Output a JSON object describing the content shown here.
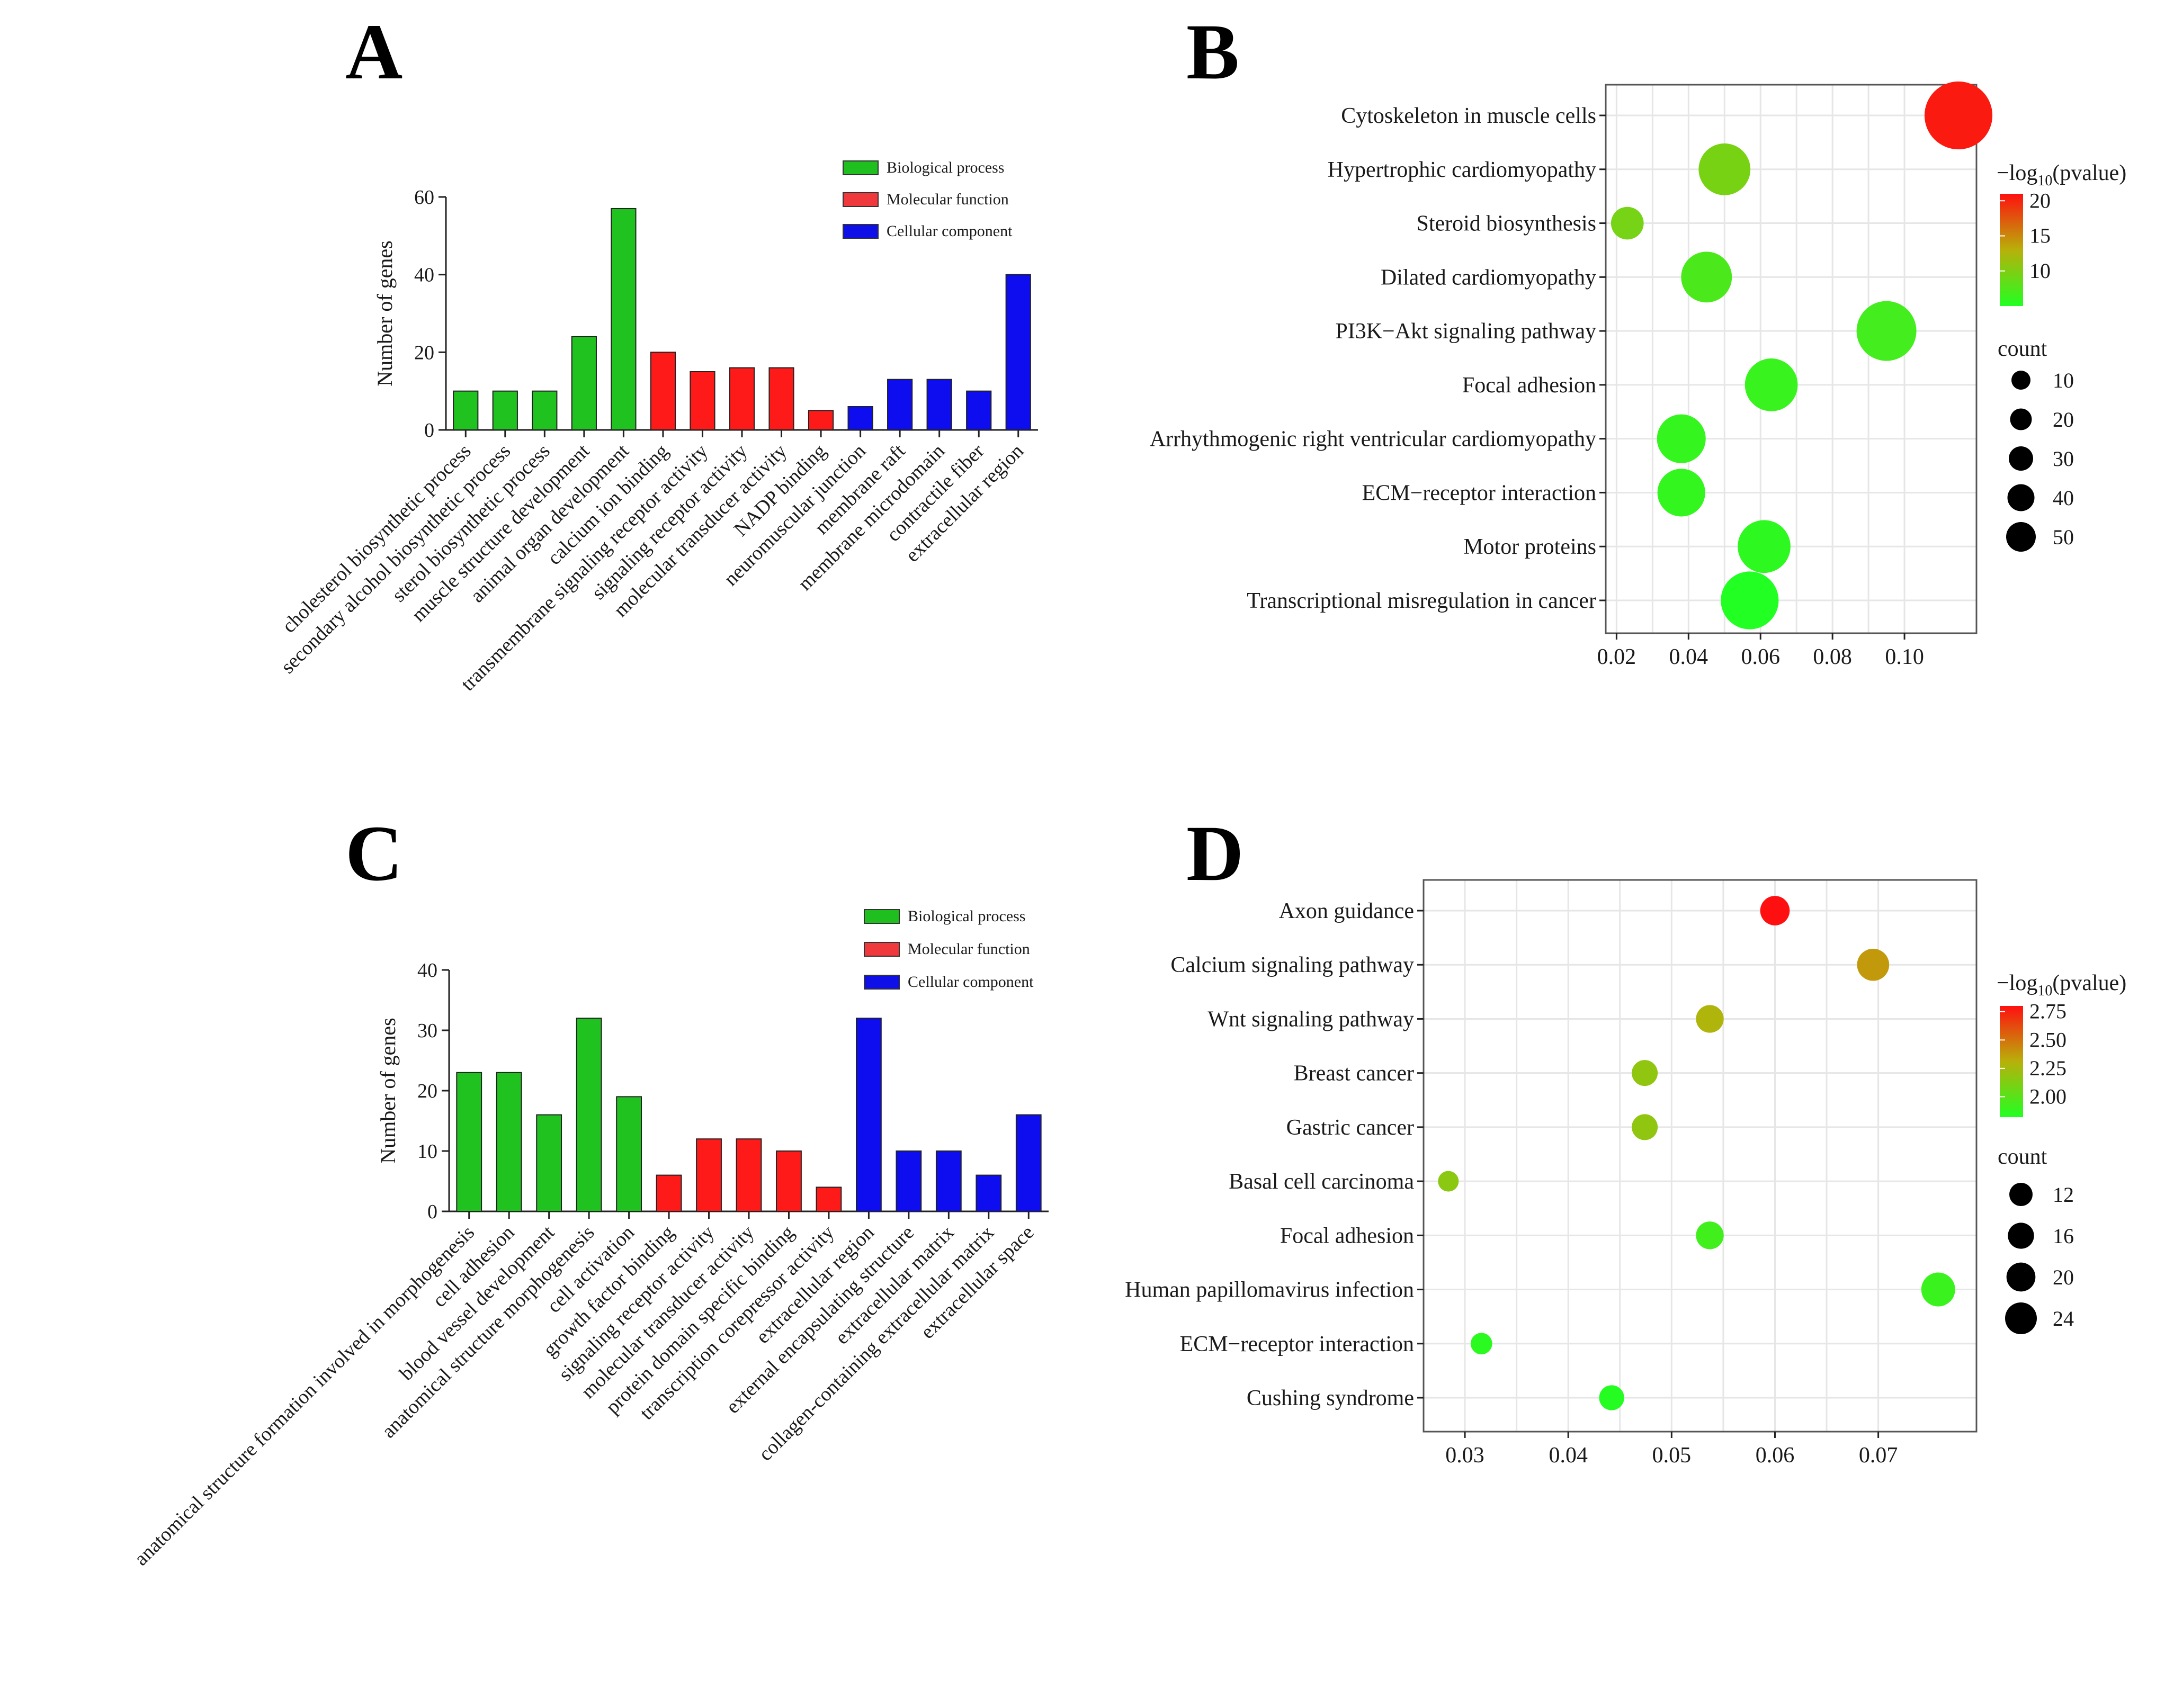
{
  "chart_data": [
    {
      "id": "A",
      "type": "bar",
      "panel_label": "A",
      "ylabel": "Number of genes",
      "ylim": [
        0,
        60
      ],
      "yticks": [
        0,
        20,
        40,
        60
      ],
      "legend": [
        {
          "name": "Biological process",
          "color": "#1fbf1f"
        },
        {
          "name": "Molecular function",
          "color": "#f0393c"
        },
        {
          "name": "Cellular component",
          "color": "#0f0fe8"
        }
      ],
      "legend_position": "top-right",
      "bar_colors": {
        "bp": "#1fc21f",
        "mf": "#ff1a1a",
        "cc": "#0d0df0"
      },
      "categories": [
        "cholesterol biosynthetic process",
        "secondary alcohol biosynthetic process",
        "sterol biosynthetic process",
        "muscle structure development",
        "animal organ development",
        "calcium ion binding",
        "transmembrane signaling receptor activity",
        "signaling receptor activity",
        "molecular transducer activity",
        "NADP binding",
        "neuromuscular junction",
        "membrane raft",
        "membrane microdomain",
        "contractile fiber",
        "extracellular region"
      ],
      "values": [
        10,
        10,
        10,
        24,
        57,
        20,
        15,
        16,
        16,
        5,
        6,
        13,
        13,
        10,
        40
      ],
      "groups": [
        "bp",
        "bp",
        "bp",
        "bp",
        "bp",
        "mf",
        "mf",
        "mf",
        "mf",
        "mf",
        "cc",
        "cc",
        "cc",
        "cc",
        "cc"
      ]
    },
    {
      "id": "B",
      "type": "scatter",
      "panel_label": "B",
      "terms": [
        "Cytoskeleton in muscle cells",
        "Hypertrophic cardiomyopathy",
        "Steroid biosynthesis",
        "Dilated cardiomyopathy",
        "PI3K−Akt signaling pathway",
        "Focal adhesion",
        "Arrhythmogenic right ventricular cardiomyopathy",
        "ECM−receptor interaction",
        "Motor proteins",
        "Transcriptional misregulation in cancer"
      ],
      "x": [
        0.115,
        0.05,
        0.023,
        0.045,
        0.095,
        0.063,
        0.038,
        0.038,
        0.061,
        0.057
      ],
      "count": [
        48,
        32,
        13,
        31,
        40,
        33,
        29,
        28,
        33,
        38
      ],
      "neglog10p": [
        20.5,
        9.6,
        9.5,
        7.2,
        6.8,
        6.2,
        6.0,
        5.9,
        5.6,
        4.9
      ],
      "xlim": [
        0.017,
        0.12
      ],
      "xticks": [
        "0.02",
        "0.04",
        "0.06",
        "0.08",
        "0.10"
      ],
      "xtick_values": [
        0.02,
        0.04,
        0.06,
        0.08,
        0.1
      ],
      "colorbar": {
        "title_prefix": "−log",
        "title_sub": "10",
        "title_suffix": "(pvalue)",
        "ticks": [
          "20",
          "15",
          "10"
        ],
        "tick_values": [
          20,
          15,
          10
        ],
        "range": [
          5,
          21
        ]
      },
      "size_legend": {
        "title": "count",
        "labels": [
          "10",
          "20",
          "30",
          "40",
          "50"
        ],
        "values": [
          10,
          20,
          30,
          40,
          50
        ]
      },
      "grid": true
    },
    {
      "id": "C",
      "type": "bar",
      "panel_label": "C",
      "ylabel": "Number of genes",
      "ylim": [
        0,
        40
      ],
      "yticks": [
        0,
        10,
        20,
        30,
        40
      ],
      "legend": [
        {
          "name": "Biological process",
          "color": "#1fbf1f"
        },
        {
          "name": "Molecular function",
          "color": "#f0393c"
        },
        {
          "name": "Cellular component",
          "color": "#0f0fe8"
        }
      ],
      "legend_position": "top-right",
      "bar_colors": {
        "bp": "#1fc21f",
        "mf": "#ff1a1a",
        "cc": "#0d0df0"
      },
      "categories": [
        "anatomical structure formation involved in morphogenesis",
        "cell adhesion",
        "blood vessel development",
        "anatomical structure morphogenesis",
        "cell activation",
        "growth factor binding",
        "signaling receptor activity",
        "molecular transducer activity",
        "protein domain specific binding",
        "transcription corepressor activity",
        "extracellular region",
        "external encapsulating structure",
        "extracellular matrix",
        "collagen-containing extracellular matrix",
        "extracellular space"
      ],
      "values": [
        23,
        23,
        16,
        32,
        19,
        6,
        12,
        12,
        10,
        4,
        32,
        10,
        10,
        6,
        16
      ],
      "groups": [
        "bp",
        "bp",
        "bp",
        "bp",
        "bp",
        "mf",
        "mf",
        "mf",
        "mf",
        "mf",
        "cc",
        "cc",
        "cc",
        "cc",
        "cc"
      ]
    },
    {
      "id": "D",
      "type": "scatter",
      "panel_label": "D",
      "terms": [
        "Axon guidance",
        "Calcium signaling pathway",
        "Wnt signaling pathway",
        "Breast cancer",
        "Gastric cancer",
        "Basal cell carcinoma",
        "Focal adhesion",
        "Human papillomavirus infection",
        "ECM−receptor interaction",
        "Cushing syndrome"
      ],
      "x": [
        0.06,
        0.0695,
        0.0537,
        0.0474,
        0.0474,
        0.0284,
        0.0537,
        0.0758,
        0.0316,
        0.0442
      ],
      "count": [
        19,
        22,
        17,
        15,
        15,
        9,
        17,
        24,
        10,
        14
      ],
      "neglog10p": [
        2.8,
        2.38,
        2.28,
        2.18,
        2.18,
        2.16,
        1.92,
        1.9,
        1.85,
        1.83
      ],
      "xlim": [
        0.026,
        0.0795
      ],
      "xticks": [
        "0.03",
        "0.04",
        "0.05",
        "0.06",
        "0.07"
      ],
      "xtick_values": [
        0.03,
        0.04,
        0.05,
        0.06,
        0.07
      ],
      "colorbar": {
        "title_prefix": "−log",
        "title_sub": "10",
        "title_suffix": "(pvalue)",
        "ticks": [
          "2.75",
          "2.50",
          "2.25",
          "2.00"
        ],
        "tick_values": [
          2.75,
          2.5,
          2.25,
          2.0
        ],
        "range": [
          1.82,
          2.8
        ]
      },
      "size_legend": {
        "title": "count",
        "labels": [
          "12",
          "16",
          "20",
          "24"
        ],
        "values": [
          12,
          16,
          20,
          24
        ]
      },
      "grid": true
    }
  ]
}
